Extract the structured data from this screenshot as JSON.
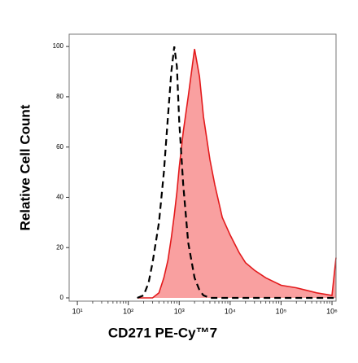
{
  "chart_data": {
    "type": "histogram-overlay",
    "xlabel": "CD271 PE-Cy™7",
    "ylabel": "Relative Cell Count",
    "log_x": true,
    "xlim": [
      6.9,
      1200000
    ],
    "ylim": [
      -1.3,
      104.9
    ],
    "xticks": [
      {
        "value": 10,
        "label": "10¹"
      },
      {
        "value": 100,
        "label": "10²"
      },
      {
        "value": 1000,
        "label": "10³"
      },
      {
        "value": 10000,
        "label": "10⁴"
      },
      {
        "value": 100000,
        "label": "10⁵"
      },
      {
        "value": 1000000,
        "label": "10⁶"
      }
    ],
    "yticks": [
      0,
      20,
      40,
      60,
      80,
      100
    ],
    "x": [
      150,
      200,
      250,
      300,
      400,
      500,
      600,
      700,
      800,
      900,
      1000,
      1200,
      1500,
      2000,
      2500,
      3000,
      4000,
      5000,
      7000,
      10000,
      15000,
      20000,
      30000,
      50000,
      100000,
      200000,
      500000,
      1000000,
      1200000
    ],
    "series": [
      {
        "color": "#e31a1c",
        "fill": "#f9a0a0",
        "style": "filled",
        "values": [
          0,
          0,
          0,
          0,
          2,
          8,
          15,
          24,
          33,
          42,
          52,
          66,
          80,
          99,
          88,
          72,
          55,
          45,
          32,
          25,
          18,
          14,
          11,
          8,
          5,
          4,
          2,
          1,
          16
        ]
      },
      {
        "color": "#000000",
        "style": "dashed",
        "values": [
          0,
          1,
          6,
          14,
          30,
          50,
          72,
          90,
          100,
          92,
          70,
          45,
          22,
          8,
          3,
          1,
          0,
          0,
          0,
          0,
          0,
          0,
          0,
          0,
          0,
          0,
          0,
          0,
          0
        ]
      }
    ]
  }
}
